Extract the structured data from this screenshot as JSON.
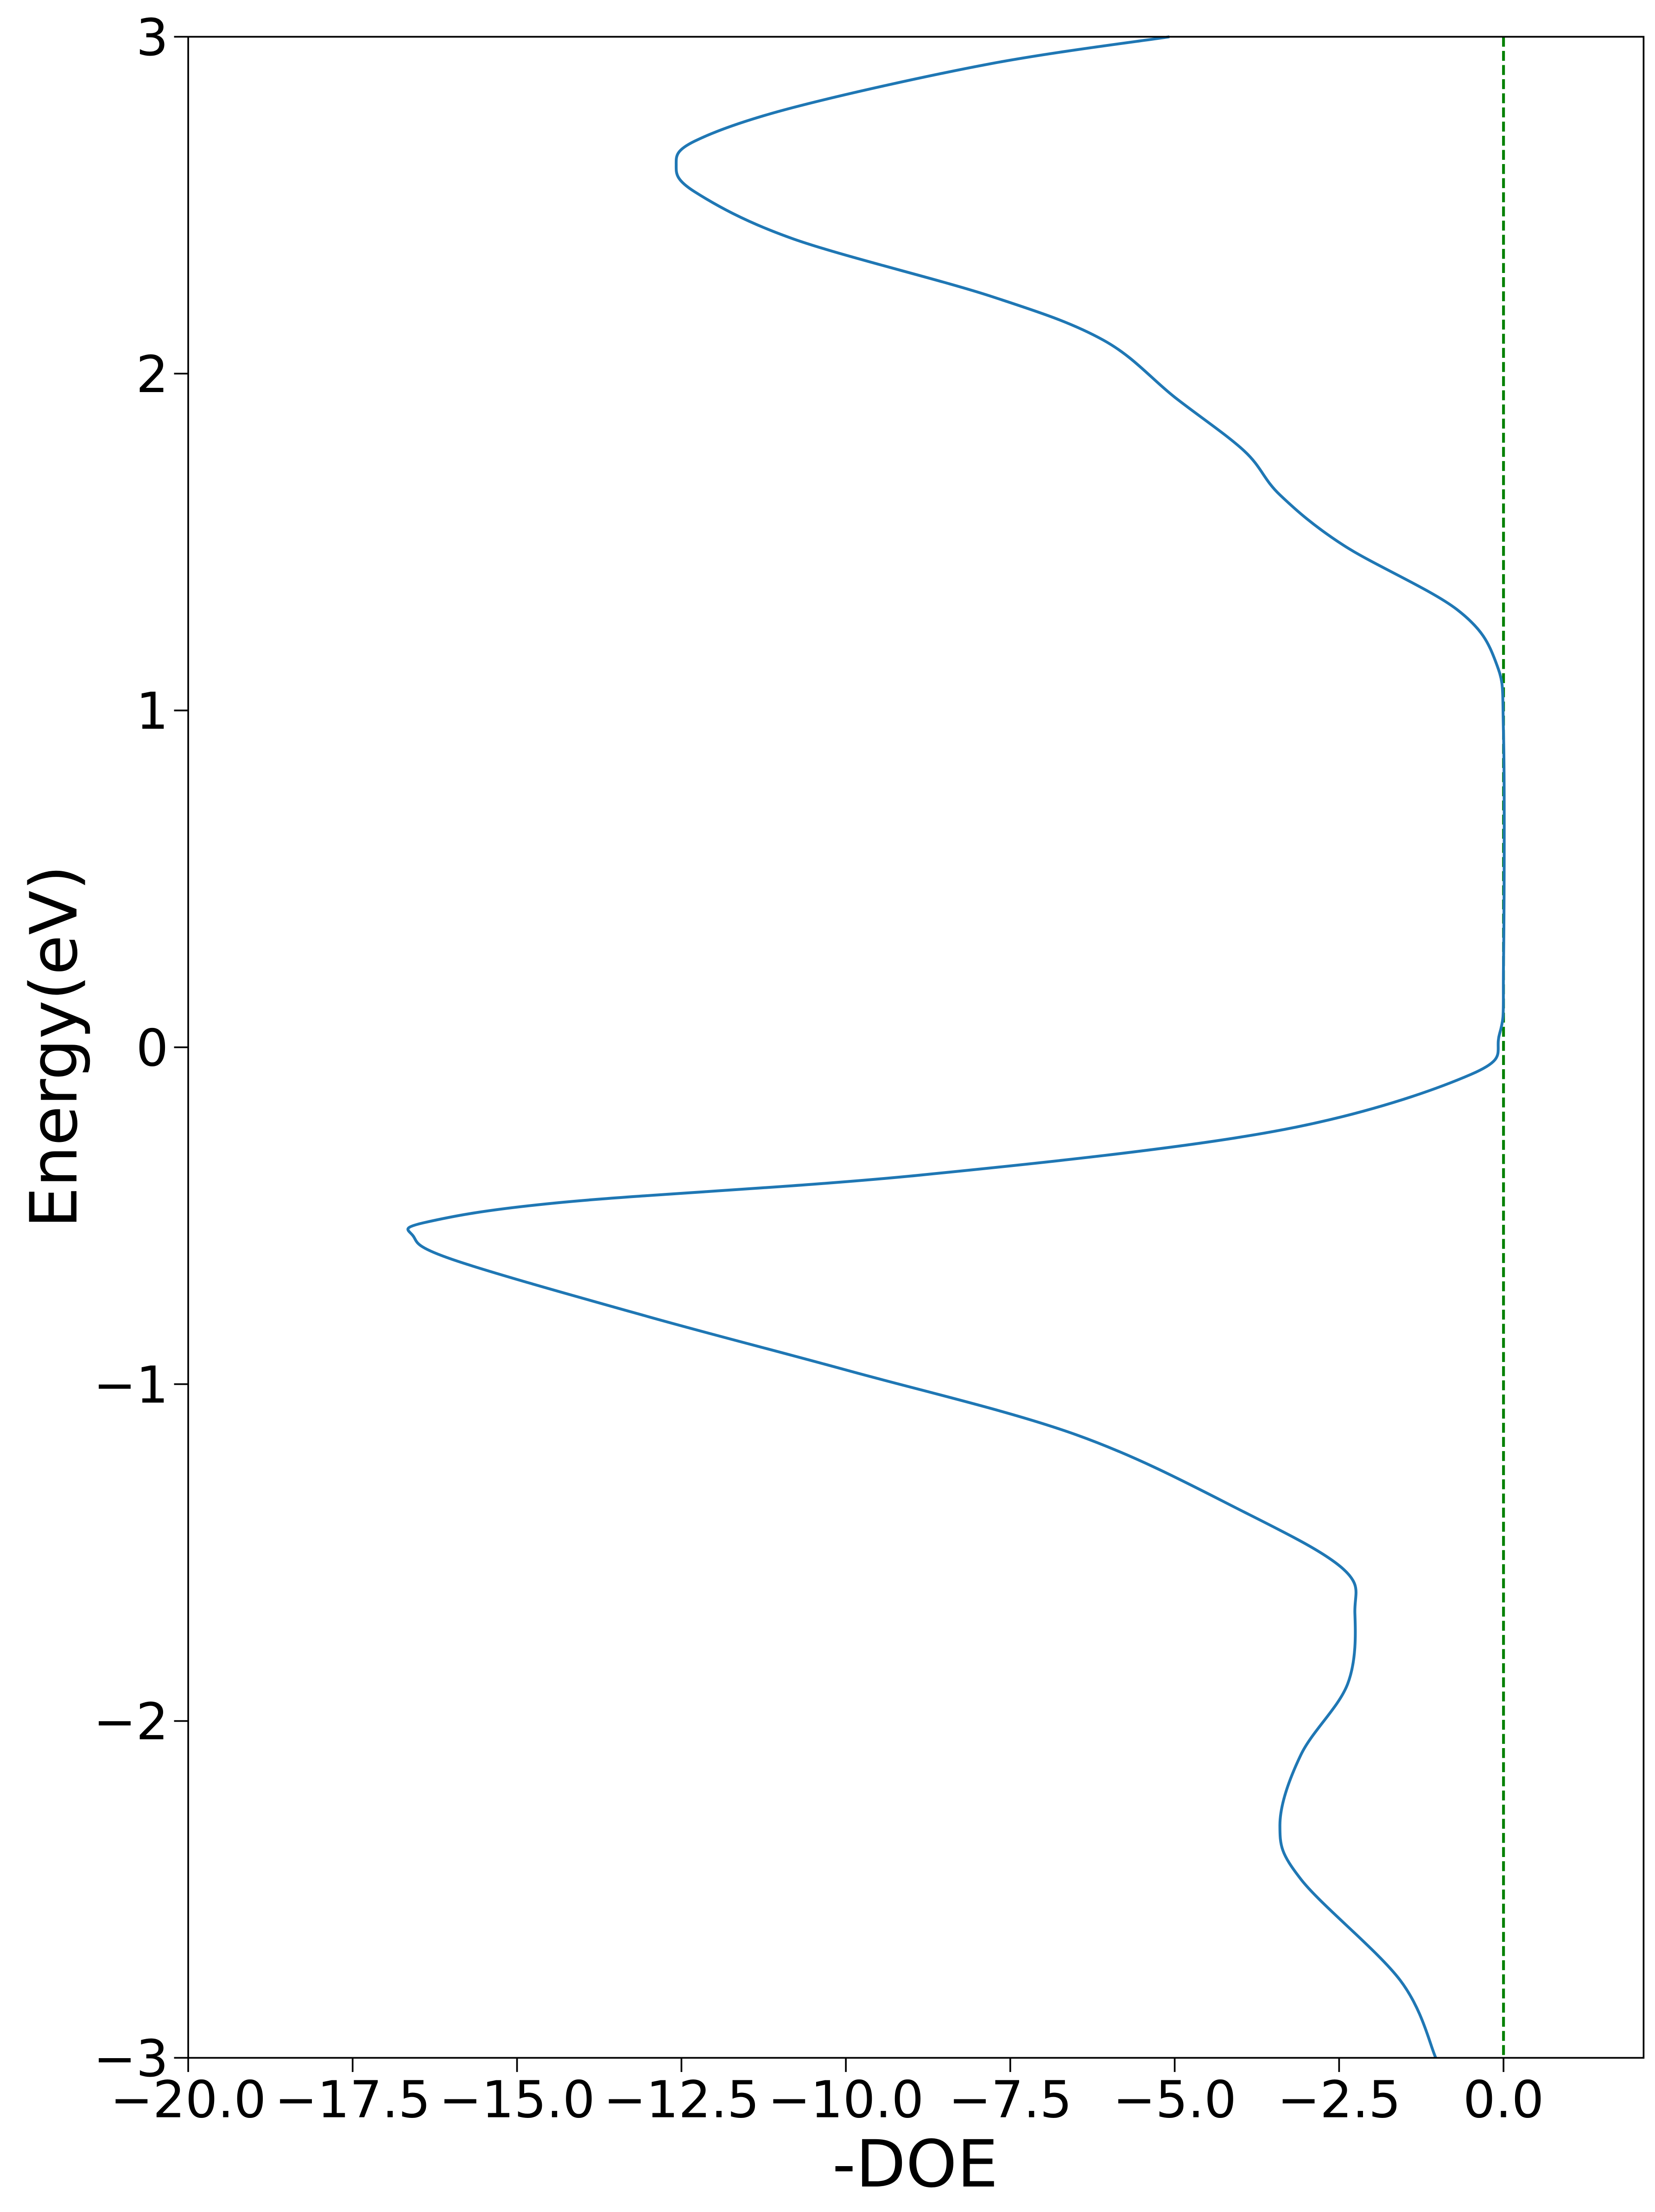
{
  "chart_data": {
    "type": "line",
    "x_label": "-DOE",
    "y_label": "Energy(eV)",
    "xlim": [
      -20,
      2.13
    ],
    "ylim": [
      -3,
      3
    ],
    "xticks": [
      {
        "value": -20,
        "label": "−20.0"
      },
      {
        "value": -17.5,
        "label": "−17.5"
      },
      {
        "value": -15,
        "label": "−15.0"
      },
      {
        "value": -12.5,
        "label": "−12.5"
      },
      {
        "value": -10,
        "label": "−10.0"
      },
      {
        "value": -7.5,
        "label": "−7.5"
      },
      {
        "value": -5,
        "label": "−5.0"
      },
      {
        "value": -2.5,
        "label": "−2.5"
      },
      {
        "value": 0,
        "label": "0.0"
      }
    ],
    "yticks": [
      {
        "value": -3,
        "label": "−3"
      },
      {
        "value": -2,
        "label": "−2"
      },
      {
        "value": -1,
        "label": "−1"
      },
      0,
      1,
      2,
      3
    ],
    "vline": 0,
    "vline_color": "#008000",
    "series": [
      {
        "color": "#1f77b4",
        "x": [
          -5.08,
          -7.8,
          -10.8,
          -12.3,
          -12.58,
          -12.3,
          -10.8,
          -7.8,
          -6.09,
          -5.0,
          -3.94,
          -3.4,
          -2.43,
          -0.71,
          -0.11,
          0,
          0,
          -0.06,
          -0.49,
          -3.5,
          -8.9,
          -14.3,
          -16.4,
          -16.58,
          -15.98,
          -13.0,
          -9.96,
          -6.5,
          -3.94,
          -2.43,
          -2.26,
          -2.37,
          -3.08,
          -3.4,
          -3.08,
          -1.57,
          -1.03
        ],
        "y": [
          3,
          2.92,
          2.79,
          2.69,
          2.62,
          2.54,
          2.4,
          2.23,
          2.1,
          1.93,
          1.77,
          1.64,
          1.49,
          1.3,
          1.14,
          0.93,
          0.25,
          0.04,
          -0.08,
          -0.25,
          -0.38,
          -0.46,
          -0.52,
          -0.56,
          -0.63,
          -0.8,
          -0.96,
          -1.15,
          -1.38,
          -1.55,
          -1.68,
          -1.89,
          -2.1,
          -2.31,
          -2.47,
          -2.77,
          -3.0
        ]
      }
    ]
  }
}
